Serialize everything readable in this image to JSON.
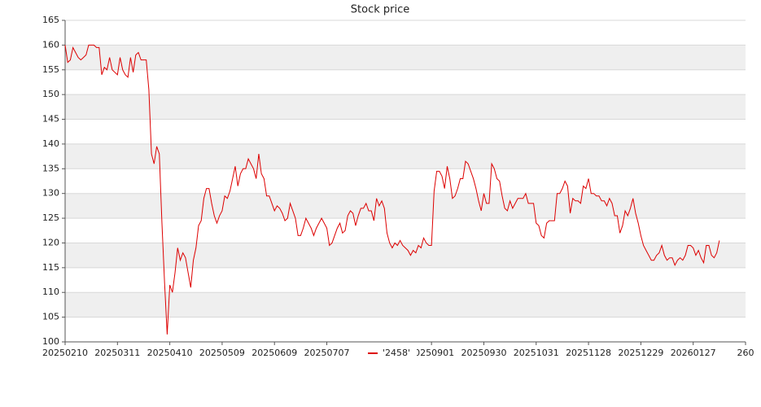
{
  "chart_data": {
    "type": "line",
    "title": "Stock price",
    "xlim": [
      0,
      260
    ],
    "xticks": [
      {
        "value": 0,
        "label": "20250210"
      },
      {
        "value": 20,
        "label": "20250311"
      },
      {
        "value": 40,
        "label": "20250410"
      },
      {
        "value": 60,
        "label": "20250509"
      },
      {
        "value": 80,
        "label": "20250609"
      },
      {
        "value": 100,
        "label": "20250707"
      },
      {
        "value": 140,
        "label": "20250901"
      },
      {
        "value": 160,
        "label": "20250930"
      },
      {
        "value": 180,
        "label": "20251031"
      },
      {
        "value": 200,
        "label": "20251128"
      },
      {
        "value": 220,
        "label": "20251229"
      },
      {
        "value": 240,
        "label": "20260127"
      },
      {
        "value": 260,
        "label": "260"
      }
    ],
    "ylim": [
      100,
      165
    ],
    "yticks": [
      100,
      105,
      110,
      115,
      120,
      125,
      130,
      135,
      140,
      145,
      150,
      155,
      160,
      165
    ],
    "grid": true,
    "legend": "bottom",
    "series": [
      {
        "name": "'2458'",
        "color": "#dd0000",
        "values": [
          160,
          156.5,
          157,
          159.5,
          158.5,
          157.5,
          157,
          157.5,
          158,
          160,
          160,
          160,
          159.5,
          159.5,
          154,
          155.5,
          155,
          157.5,
          155,
          154.5,
          154,
          157.5,
          155,
          154,
          153.5,
          157.5,
          154.5,
          158,
          158.5,
          157,
          157,
          157,
          151,
          138,
          136,
          139.5,
          138,
          124,
          112,
          101.5,
          111.5,
          110,
          114,
          119,
          116.5,
          118,
          117,
          114,
          111,
          116.5,
          119,
          123.5,
          124.5,
          129,
          131,
          131,
          128,
          125.5,
          124,
          125.5,
          126.5,
          129.5,
          129,
          130.5,
          133,
          135.5,
          131.5,
          134,
          135,
          135,
          137,
          136,
          135,
          133,
          138,
          134,
          133,
          129.5,
          129.5,
          128,
          126.5,
          127.5,
          127,
          126,
          124.5,
          125,
          128,
          126.5,
          125,
          121.5,
          121.5,
          123,
          125,
          124,
          123,
          121.5,
          123,
          124,
          125,
          124,
          123,
          119.5,
          120,
          121.5,
          123,
          124,
          122,
          122.5,
          125.5,
          126.5,
          126,
          123.5,
          125.5,
          127,
          127,
          128,
          126.5,
          126.5,
          124.5,
          129,
          127.5,
          128.5,
          127,
          122,
          120,
          119,
          120,
          119.5,
          120.5,
          119.5,
          119,
          118.5,
          117.5,
          118.5,
          118,
          119.5,
          119,
          121,
          120,
          119.5,
          119.5,
          130.5,
          134.5,
          134.5,
          133.5,
          131,
          135.5,
          133,
          129,
          129.5,
          131,
          133,
          133,
          136.5,
          136,
          134.5,
          133,
          131,
          128.5,
          126.5,
          130,
          128,
          128,
          136,
          135,
          133,
          132.5,
          129.5,
          127,
          126.5,
          128.5,
          127,
          128,
          129,
          129,
          129,
          130,
          128,
          128,
          128,
          124,
          123.5,
          121.5,
          121,
          124,
          124.5,
          124.5,
          124.5,
          130,
          130,
          131,
          132.5,
          131.5,
          126,
          129,
          128.5,
          128.5,
          128,
          131.5,
          131,
          133,
          130,
          130,
          129.5,
          129.5,
          128.5,
          128.5,
          127.5,
          129,
          128,
          125.5,
          125.5,
          122,
          123.5,
          126.5,
          125.5,
          127,
          129,
          126,
          124,
          121.5,
          119.5,
          118.5,
          117.5,
          116.5,
          116.5,
          117.5,
          118,
          119.5,
          117.5,
          116.5,
          117,
          117,
          115.5,
          116.5,
          117,
          116.5,
          117.5,
          119.5,
          119.5,
          119,
          117.5,
          118.5,
          117,
          116,
          119.5,
          119.5,
          117.5,
          117,
          118,
          120.5
        ]
      }
    ]
  }
}
